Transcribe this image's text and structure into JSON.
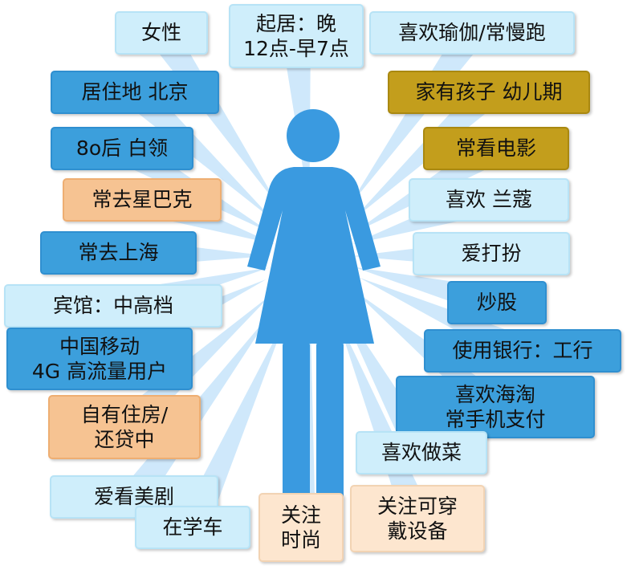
{
  "colors": {
    "figure": "#3a9ae0",
    "ray": "#cfe8fb",
    "light_tag": "#cfeefb",
    "blue_tag": "#3c9fdc",
    "orange_tag": "#f6c392",
    "peach_tag": "#fde6cf",
    "olive_tag": "#c39e1c"
  },
  "tags": {
    "female": {
      "lines": [
        "女性"
      ]
    },
    "sleep": {
      "lines": [
        "起居：晚",
        "12点-早7点"
      ]
    },
    "yoga": {
      "lines": [
        "喜欢瑜伽/常慢跑"
      ]
    },
    "residence": {
      "lines": [
        "居住地 北京"
      ]
    },
    "kids": {
      "lines": [
        "家有孩子 幼儿期"
      ]
    },
    "post80": {
      "lines": [
        "8o后 白领"
      ]
    },
    "movies": {
      "lines": [
        "常看电影"
      ]
    },
    "starbucks": {
      "lines": [
        "常去星巴克"
      ]
    },
    "lancome": {
      "lines": [
        "喜欢 兰蔻"
      ]
    },
    "shanghai": {
      "lines": [
        "常去上海"
      ]
    },
    "dressup": {
      "lines": [
        "爱打扮"
      ]
    },
    "hotel": {
      "lines": [
        "宾馆：中高档"
      ]
    },
    "stocks": {
      "lines": [
        "炒股"
      ]
    },
    "mobile": {
      "lines": [
        "中国移动",
        "4G 高流量用户"
      ]
    },
    "bank": {
      "lines": [
        "使用银行：工行"
      ]
    },
    "shopping": {
      "lines": [
        "喜欢海淘",
        "常手机支付"
      ]
    },
    "house": {
      "lines": [
        "自有住房/",
        "还贷中"
      ]
    },
    "cooking": {
      "lines": [
        "喜欢做菜"
      ]
    },
    "tvseries": {
      "lines": [
        "爱看美剧"
      ]
    },
    "fashion": {
      "lines": [
        "关注",
        "时尚"
      ]
    },
    "wearables": {
      "lines": [
        "关注可穿",
        "戴设备"
      ]
    },
    "learning_drive": {
      "lines": [
        "在学车"
      ]
    }
  }
}
